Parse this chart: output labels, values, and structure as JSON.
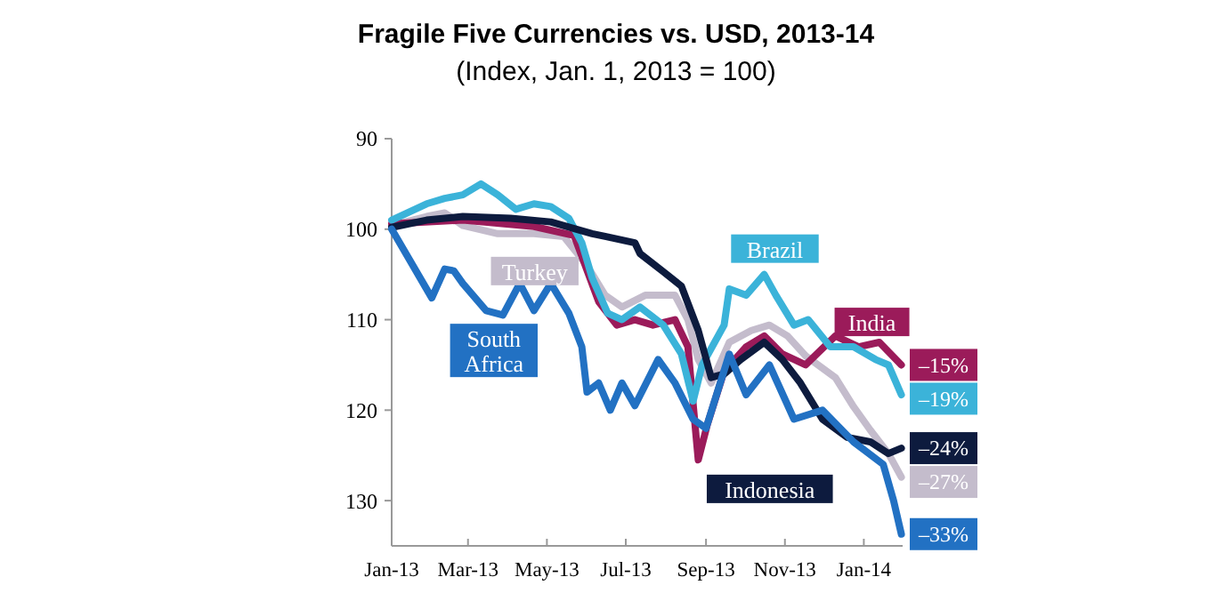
{
  "chart_data": {
    "type": "line",
    "title": "Fragile Five Currencies vs. USD, 2013-14",
    "subtitle": "(Index, Jan. 1, 2013 = 100)",
    "ylim": [
      135,
      90
    ],
    "yticks": [
      90,
      100,
      110,
      120,
      130
    ],
    "xlim": [
      "2013-01-01",
      "2014-01-31"
    ],
    "xticks": [
      {
        "value": "2013-01-01",
        "label": "Jan-13"
      },
      {
        "value": "2013-03-01",
        "label": "Mar-13"
      },
      {
        "value": "2013-05-01",
        "label": "May-13"
      },
      {
        "value": "2013-07-01",
        "label": "Jul-13"
      },
      {
        "value": "2013-09-01",
        "label": "Sep-13"
      },
      {
        "value": "2013-11-01",
        "label": "Nov-13"
      },
      {
        "value": "2014-01-01",
        "label": "Jan-14"
      }
    ],
    "annotations": [
      "–15%",
      "–19%",
      "–24%",
      "–27%",
      "–33%"
    ],
    "grid": false,
    "marker": "none",
    "line_style": "solid",
    "series": [
      {
        "name": "Turkey",
        "color": "#c4bccc",
        "x": [
          "2013-01-01",
          "2013-01-28",
          "2013-02-11",
          "2013-02-25",
          "2013-03-24",
          "2013-04-21",
          "2013-05-14",
          "2013-06-01",
          "2013-06-15",
          "2013-06-28",
          "2013-07-16",
          "2013-08-08",
          "2013-08-18",
          "2013-08-26",
          "2013-09-05",
          "2013-09-19",
          "2013-10-06",
          "2013-10-20",
          "2013-11-03",
          "2013-11-17",
          "2013-12-10",
          "2013-12-24",
          "2014-01-06",
          "2014-01-20",
          "2014-01-30"
        ],
        "values": [
          99.6,
          98.6,
          98.2,
          99.6,
          100.5,
          100.5,
          100.8,
          104,
          107.3,
          108.6,
          107.3,
          107.3,
          110,
          114.4,
          117,
          112.5,
          111.2,
          110.6,
          111.8,
          114,
          116.4,
          119.6,
          122.2,
          124.8,
          127.4
        ]
      },
      {
        "name": "India",
        "color": "#9b1b5a",
        "x": [
          "2013-01-01",
          "2013-02-25",
          "2013-04-21",
          "2013-05-22",
          "2013-06-10",
          "2013-06-24",
          "2013-07-08",
          "2013-07-22",
          "2013-08-08",
          "2013-08-18",
          "2013-08-26",
          "2013-09-02",
          "2013-09-15",
          "2013-10-02",
          "2013-10-16",
          "2013-10-30",
          "2013-11-17",
          "2013-12-10",
          "2013-12-28",
          "2014-01-13",
          "2014-01-30"
        ],
        "values": [
          99.4,
          99,
          99.7,
          100.7,
          108,
          110.6,
          110,
          110.6,
          110,
          113,
          125.5,
          121.6,
          115.7,
          113,
          111.8,
          113.8,
          115,
          111.8,
          113,
          112.5,
          115
        ]
      },
      {
        "name": "Brazil",
        "color": "#3bb3d9",
        "x": [
          "2013-01-01",
          "2013-01-28",
          "2013-02-11",
          "2013-02-25",
          "2013-03-11",
          "2013-03-24",
          "2013-04-07",
          "2013-04-21",
          "2013-05-04",
          "2013-05-18",
          "2013-05-28",
          "2013-06-05",
          "2013-06-17",
          "2013-06-28",
          "2013-07-12",
          "2013-07-30",
          "2013-08-13",
          "2013-08-22",
          "2013-08-29",
          "2013-09-15",
          "2013-09-19",
          "2013-10-02",
          "2013-10-16",
          "2013-10-25",
          "2013-11-08",
          "2013-11-19",
          "2013-12-06",
          "2013-12-24",
          "2014-01-10",
          "2014-01-20",
          "2014-01-30"
        ],
        "values": [
          99,
          97.2,
          96.6,
          96.2,
          95,
          96.2,
          97.8,
          97.2,
          97.5,
          98.8,
          101.5,
          105.4,
          109.3,
          110,
          108.6,
          110.6,
          113.8,
          119,
          115,
          110.6,
          106.6,
          107.3,
          105,
          107.3,
          110.6,
          110,
          113,
          113,
          114.4,
          115,
          118.3
        ]
      },
      {
        "name": "Indonesia",
        "color": "#0d1b3e",
        "x": [
          "2013-01-01",
          "2013-01-28",
          "2013-02-25",
          "2013-04-03",
          "2013-05-04",
          "2013-06-05",
          "2013-06-15",
          "2013-07-08",
          "2013-07-12",
          "2013-07-30",
          "2013-08-13",
          "2013-08-26",
          "2013-09-05",
          "2013-09-15",
          "2013-09-28",
          "2013-10-16",
          "2013-10-30",
          "2013-11-13",
          "2013-11-30",
          "2013-12-19",
          "2014-01-06",
          "2014-01-20",
          "2014-01-30"
        ],
        "values": [
          99.8,
          99,
          98.6,
          98.8,
          99.2,
          100.5,
          100.8,
          101.5,
          102.7,
          104.7,
          106.3,
          111.2,
          116.4,
          116,
          114.4,
          112.5,
          114.4,
          117,
          121,
          123,
          123.5,
          124.8,
          124.2
        ]
      },
      {
        "name": "South Africa",
        "color": "#2271c3",
        "x": [
          "2013-01-01",
          "2013-02-01",
          "2013-02-11",
          "2013-02-18",
          "2013-02-25",
          "2013-03-15",
          "2013-03-28",
          "2013-04-10",
          "2013-04-21",
          "2013-05-04",
          "2013-05-18",
          "2013-05-28",
          "2013-06-01",
          "2013-06-10",
          "2013-06-19",
          "2013-06-28",
          "2013-07-08",
          "2013-07-26",
          "2013-08-08",
          "2013-08-22",
          "2013-09-01",
          "2013-09-19",
          "2013-10-02",
          "2013-10-20",
          "2013-11-08",
          "2013-11-30",
          "2013-12-24",
          "2014-01-16",
          "2014-01-24",
          "2014-01-30"
        ],
        "values": [
          100,
          107.6,
          104.4,
          104.6,
          106,
          109,
          109.5,
          106,
          109,
          106,
          109.3,
          113,
          118,
          117,
          120,
          117,
          119.5,
          114.4,
          117,
          121,
          122,
          113.8,
          118.3,
          115,
          121,
          120,
          123.5,
          126,
          130,
          133.7
        ]
      }
    ]
  }
}
